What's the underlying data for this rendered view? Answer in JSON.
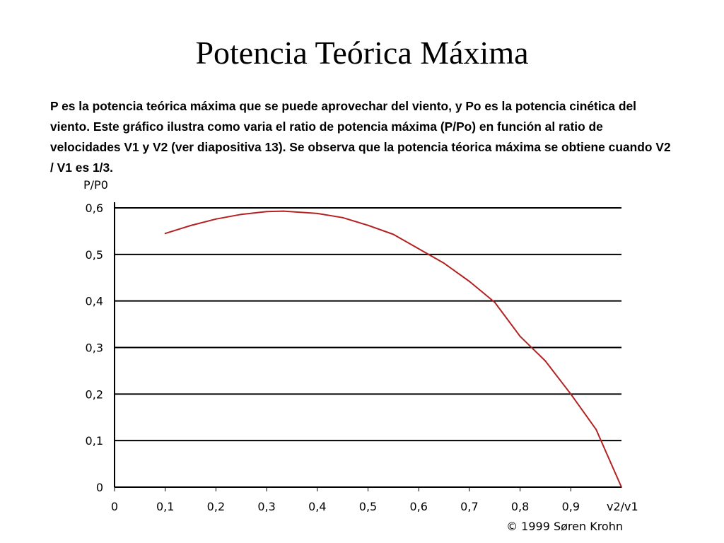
{
  "slide": {
    "title": "Potencia Teórica Máxima",
    "description": "P es la potencia teórica máxima que se puede aprovechar del viento, y Po es la potencia cinética del viento. Este gráfico ilustra como varia el ratio de potencia máxima (P/Po) en función al ratio de velocidades V1 y V2 (ver diapositiva 13). Se observa que la potencia téorica máxima se obtiene cuando V2 / V1 es 1/3."
  },
  "chart_data": {
    "type": "line",
    "ylabel": "P/P0",
    "xlabel": "v2/v1",
    "credit": "© 1999 Søren Krohn",
    "xlim": [
      0,
      1
    ],
    "ylim": [
      0,
      0.6
    ],
    "x_ticks": [
      "0",
      "0,1",
      "0,2",
      "0,3",
      "0,4",
      "0,5",
      "0,6",
      "0,7",
      "0,8",
      "0,9"
    ],
    "y_ticks": [
      "0",
      "0,1",
      "0,2",
      "0,3",
      "0,4",
      "0,5",
      "0,6"
    ],
    "grid": "horizontal",
    "series": [
      {
        "color": "#b22222",
        "x": [
          0.1,
          0.15,
          0.2,
          0.25,
          0.3,
          0.3333,
          0.4,
          0.45,
          0.5,
          0.55,
          0.6,
          0.65,
          0.7,
          0.75,
          0.8,
          0.85,
          0.9,
          0.95,
          1.0
        ],
        "y": [
          0.545,
          0.562,
          0.576,
          0.586,
          0.592,
          0.593,
          0.588,
          0.579,
          0.5625,
          0.543,
          0.512,
          0.481,
          0.442,
          0.397,
          0.324,
          0.271,
          0.2,
          0.124,
          0.0
        ]
      }
    ]
  }
}
